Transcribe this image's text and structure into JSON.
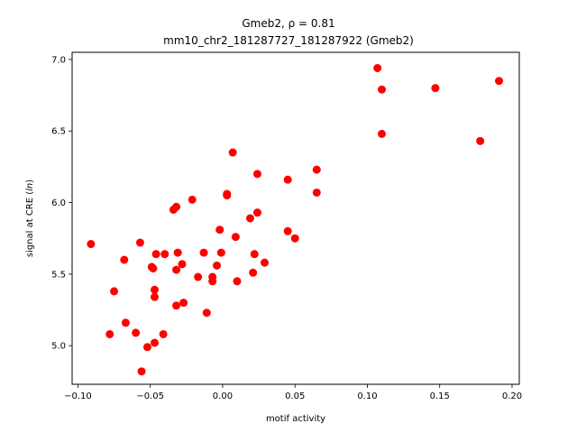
{
  "chart_data": {
    "type": "scatter",
    "title_line1": "Gmeb2, ρ = 0.81",
    "title_line2": "mm10_chr2_181287727_181287922 (Gmeb2)",
    "xlabel": "motif activity",
    "ylabel": "signal at CRE (ln)",
    "xlim": [
      -0.104,
      0.205
    ],
    "ylim": [
      4.73,
      7.05
    ],
    "xticks": [
      {
        "value": -0.1,
        "label": "−0.10"
      },
      {
        "value": -0.05,
        "label": "−0.05"
      },
      {
        "value": 0.0,
        "label": "0.00"
      },
      {
        "value": 0.05,
        "label": "0.05"
      },
      {
        "value": 0.1,
        "label": "0.10"
      },
      {
        "value": 0.15,
        "label": "0.15"
      },
      {
        "value": 0.2,
        "label": "0.20"
      }
    ],
    "yticks": [
      {
        "value": 5.0,
        "label": "5.0"
      },
      {
        "value": 5.5,
        "label": "5.5"
      },
      {
        "value": 6.0,
        "label": "6.0"
      },
      {
        "value": 6.5,
        "label": "6.5"
      },
      {
        "value": 7.0,
        "label": "7.0"
      }
    ],
    "grid": false,
    "legend": "none",
    "marker_color": "#ff0000",
    "points": [
      [
        -0.091,
        5.71
      ],
      [
        -0.078,
        5.08
      ],
      [
        -0.075,
        5.38
      ],
      [
        -0.068,
        5.6
      ],
      [
        -0.067,
        5.16
      ],
      [
        -0.06,
        5.09
      ],
      [
        -0.057,
        5.72
      ],
      [
        -0.056,
        4.82
      ],
      [
        -0.052,
        4.99
      ],
      [
        -0.049,
        5.55
      ],
      [
        -0.048,
        5.54
      ],
      [
        -0.047,
        5.39
      ],
      [
        -0.047,
        5.34
      ],
      [
        -0.047,
        5.02
      ],
      [
        -0.046,
        5.64
      ],
      [
        -0.041,
        5.08
      ],
      [
        -0.04,
        5.64
      ],
      [
        -0.034,
        5.95
      ],
      [
        -0.032,
        5.97
      ],
      [
        -0.032,
        5.53
      ],
      [
        -0.032,
        5.28
      ],
      [
        -0.031,
        5.65
      ],
      [
        -0.028,
        5.57
      ],
      [
        -0.027,
        5.3
      ],
      [
        -0.021,
        6.02
      ],
      [
        -0.017,
        5.48
      ],
      [
        -0.013,
        5.65
      ],
      [
        -0.011,
        5.23
      ],
      [
        -0.007,
        5.48
      ],
      [
        -0.007,
        5.45
      ],
      [
        -0.004,
        5.56
      ],
      [
        -0.002,
        5.81
      ],
      [
        -0.001,
        5.65
      ],
      [
        0.003,
        6.06
      ],
      [
        0.003,
        6.05
      ],
      [
        0.007,
        6.35
      ],
      [
        0.009,
        5.76
      ],
      [
        0.01,
        5.45
      ],
      [
        0.019,
        5.89
      ],
      [
        0.021,
        5.51
      ],
      [
        0.022,
        5.64
      ],
      [
        0.024,
        6.2
      ],
      [
        0.024,
        5.93
      ],
      [
        0.029,
        5.58
      ],
      [
        0.045,
        6.16
      ],
      [
        0.045,
        5.8
      ],
      [
        0.05,
        5.75
      ],
      [
        0.065,
        6.23
      ],
      [
        0.065,
        6.07
      ],
      [
        0.107,
        6.94
      ],
      [
        0.11,
        6.79
      ],
      [
        0.11,
        6.48
      ],
      [
        0.147,
        6.8
      ],
      [
        0.178,
        6.43
      ],
      [
        0.191,
        6.85
      ]
    ]
  }
}
